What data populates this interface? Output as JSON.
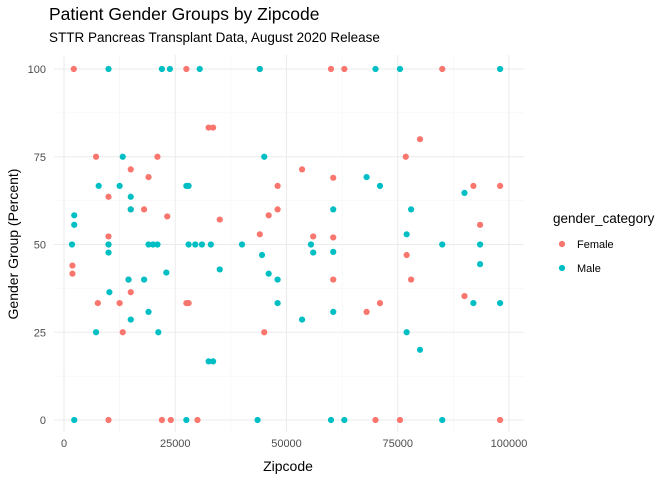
{
  "chart_data": {
    "type": "scatter",
    "title": "Patient Gender Groups by Zipcode",
    "subtitle": "STTR Pancreas Transplant Data, August 2020 Release",
    "xlabel": "Zipcode",
    "ylabel": "Gender Group (Percent)",
    "xlim": [
      0,
      100000
    ],
    "ylim": [
      0,
      100
    ],
    "x_ticks": [
      0,
      25000,
      50000,
      75000,
      100000
    ],
    "x_tick_labels": [
      "0",
      "25000",
      "50000",
      "75000",
      "100000"
    ],
    "y_ticks": [
      0,
      25,
      50,
      75,
      100
    ],
    "y_tick_labels": [
      "0",
      "25",
      "50",
      "75",
      "100"
    ],
    "grid": true,
    "legend": {
      "title": "gender_category",
      "placement": "right"
    },
    "series": [
      {
        "name": "Female",
        "color": "#F8766D",
        "points": [
          [
            2200,
            100
          ],
          [
            1900,
            44
          ],
          [
            1900,
            41.7
          ],
          [
            7200,
            75
          ],
          [
            7600,
            33.3
          ],
          [
            10000,
            63.6
          ],
          [
            10000,
            52.3
          ],
          [
            10000,
            50
          ],
          [
            10000,
            0
          ],
          [
            12500,
            33.3
          ],
          [
            13200,
            25
          ],
          [
            14500,
            40
          ],
          [
            15000,
            71.4
          ],
          [
            15000,
            60
          ],
          [
            15000,
            36.4
          ],
          [
            18000,
            60
          ],
          [
            19000,
            69.2
          ],
          [
            21000,
            75
          ],
          [
            22000,
            0
          ],
          [
            23200,
            58
          ],
          [
            24000,
            0
          ],
          [
            27500,
            100
          ],
          [
            27500,
            33.3
          ],
          [
            28000,
            33.3
          ],
          [
            30000,
            0
          ],
          [
            32500,
            83.3
          ],
          [
            33500,
            83.3
          ],
          [
            35000,
            57.1
          ],
          [
            44000,
            100
          ],
          [
            44000,
            52.9
          ],
          [
            45000,
            25
          ],
          [
            46000,
            58.3
          ],
          [
            48000,
            66.7
          ],
          [
            48000,
            60
          ],
          [
            53500,
            71.4
          ],
          [
            56000,
            52.3
          ],
          [
            60000,
            100
          ],
          [
            60500,
            52
          ],
          [
            60500,
            40
          ],
          [
            60500,
            69
          ],
          [
            63000,
            100
          ],
          [
            68000,
            30.8
          ],
          [
            70000,
            0
          ],
          [
            71000,
            33.3
          ],
          [
            75500,
            0
          ],
          [
            76800,
            75
          ],
          [
            77000,
            47
          ],
          [
            78000,
            40
          ],
          [
            80000,
            80
          ],
          [
            85000,
            100
          ],
          [
            90000,
            35.3
          ],
          [
            92000,
            66.7
          ],
          [
            93500,
            55.6
          ],
          [
            98000,
            66.7
          ],
          [
            98000,
            0
          ]
        ]
      },
      {
        "name": "Male",
        "color": "#00BFC4",
        "points": [
          [
            1800,
            50
          ],
          [
            2300,
            58.3
          ],
          [
            2300,
            55.6
          ],
          [
            2300,
            0
          ],
          [
            7200,
            25
          ],
          [
            7800,
            66.7
          ],
          [
            10000,
            100
          ],
          [
            10000,
            50
          ],
          [
            10000,
            47.7
          ],
          [
            10200,
            36.4
          ],
          [
            12500,
            66.7
          ],
          [
            13200,
            75
          ],
          [
            14500,
            40
          ],
          [
            15000,
            63.6
          ],
          [
            15000,
            60
          ],
          [
            15000,
            28.6
          ],
          [
            18000,
            40
          ],
          [
            19000,
            30.8
          ],
          [
            19000,
            50
          ],
          [
            20000,
            50
          ],
          [
            21200,
            25
          ],
          [
            21000,
            50
          ],
          [
            22000,
            100
          ],
          [
            23000,
            42
          ],
          [
            23800,
            100
          ],
          [
            27500,
            66.7
          ],
          [
            27500,
            0
          ],
          [
            28000,
            66.7
          ],
          [
            28000,
            50
          ],
          [
            29500,
            50
          ],
          [
            30500,
            100
          ],
          [
            31000,
            50
          ],
          [
            32500,
            16.7
          ],
          [
            33500,
            16.7
          ],
          [
            33000,
            50
          ],
          [
            35000,
            42.9
          ],
          [
            40000,
            50
          ],
          [
            43500,
            0
          ],
          [
            44000,
            100
          ],
          [
            44500,
            47
          ],
          [
            45000,
            75
          ],
          [
            46000,
            41.7
          ],
          [
            48000,
            40
          ],
          [
            48000,
            33.3
          ],
          [
            53500,
            28.6
          ],
          [
            55500,
            50
          ],
          [
            56000,
            47.7
          ],
          [
            60000,
            0
          ],
          [
            60500,
            60
          ],
          [
            60500,
            47.9
          ],
          [
            60500,
            30.8
          ],
          [
            63000,
            0
          ],
          [
            68000,
            69.2
          ],
          [
            70000,
            100
          ],
          [
            71000,
            66.7
          ],
          [
            75500,
            100
          ],
          [
            77000,
            25
          ],
          [
            77000,
            52.9
          ],
          [
            78000,
            60
          ],
          [
            80000,
            20
          ],
          [
            85000,
            50
          ],
          [
            85000,
            0
          ],
          [
            90000,
            64.7
          ],
          [
            92000,
            33.3
          ],
          [
            93500,
            50
          ],
          [
            93500,
            44.4
          ],
          [
            98000,
            100
          ],
          [
            98000,
            33.3
          ]
        ]
      }
    ]
  }
}
